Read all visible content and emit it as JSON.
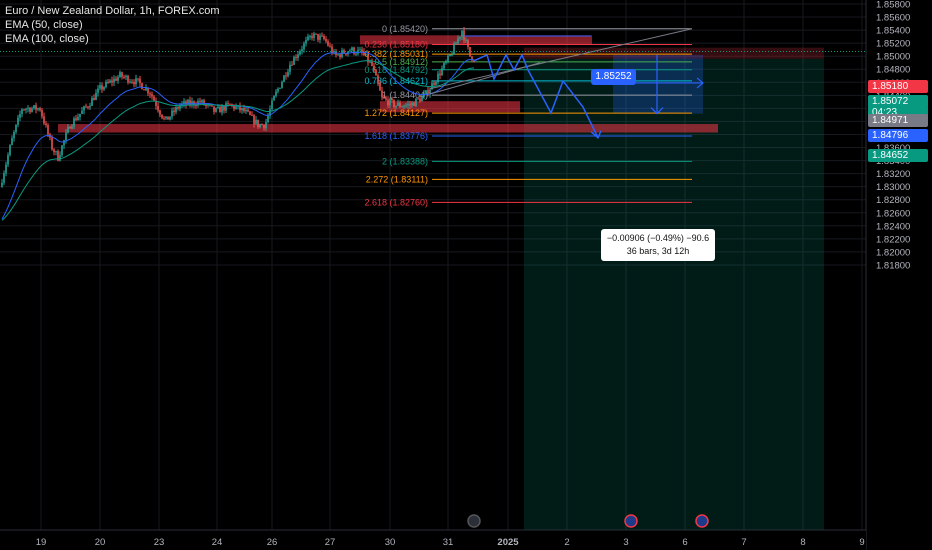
{
  "legend": {
    "symbol": "Euro / New Zealand Dollar, 1h, FOREX.com",
    "ema50": "EMA (50, close)",
    "ema100": "EMA (100, close)"
  },
  "price_axis": {
    "ticks": [
      "1.85800",
      "1.85600",
      "1.85400",
      "1.85200",
      "1.85000",
      "1.84800",
      "1.84600",
      "1.84400",
      "1.84200",
      "1.84000",
      "1.83800",
      "1.83600",
      "1.83400",
      "1.83200",
      "1.83000",
      "1.82800",
      "1.82600",
      "1.82400",
      "1.82200",
      "1.82000",
      "1.81800"
    ],
    "tags": [
      {
        "text": "1.85180",
        "color": "#f23645"
      },
      {
        "text": "1.85072",
        "color": "#089981"
      },
      {
        "text": "04:23",
        "color": "#089981"
      },
      {
        "text": "1.84971",
        "color": "#787b86"
      },
      {
        "text": "1.84796",
        "color": "#2962ff"
      },
      {
        "text": "1.84652",
        "color": "#089981"
      }
    ]
  },
  "time_axis": {
    "labels": [
      "19",
      "20",
      "23",
      "24",
      "26",
      "27",
      "30",
      "31",
      "2025",
      "2",
      "3",
      "6",
      "7",
      "8",
      "9"
    ]
  },
  "fib_levels": [
    {
      "label": "0 (1.85420)",
      "price": 1.8542,
      "color": "#9598a1"
    },
    {
      "label": "0.236 (1.85180)",
      "price": 1.8518,
      "color": "#f23645"
    },
    {
      "label": "0.382 (1.85031)",
      "price": 1.85031,
      "color": "#ff9800"
    },
    {
      "label": "0.5 (1.84912)",
      "price": 1.84912,
      "color": "#4caf50"
    },
    {
      "label": "0.618 (1.84792)",
      "price": 1.84792,
      "color": "#089981"
    },
    {
      "label": "0.786 (1.84621)",
      "price": 1.84621,
      "color": "#00bcd4"
    },
    {
      "label": "1 (1.84404)",
      "price": 1.84404,
      "color": "#9598a1"
    },
    {
      "label": "1.272 (1.84127)",
      "price": 1.84127,
      "color": "#ff9800"
    },
    {
      "label": "1.618 (1.83776)",
      "price": 1.83776,
      "color": "#2962ff"
    },
    {
      "label": "2 (1.83388)",
      "price": 1.83388,
      "color": "#089981"
    },
    {
      "label": "2.272 (1.83111)",
      "price": 1.83111,
      "color": "#ff9800"
    },
    {
      "label": "2.618 (1.82760)",
      "price": 1.8276,
      "color": "#f23645"
    }
  ],
  "price_label": "1.85252",
  "measure": {
    "line1": "−0.00906 (−0.49%) −90.6",
    "line2": "36 bars, 3d 12h"
  },
  "colors": {
    "bull": "#26a69a",
    "bear": "#ef5350",
    "ema50": "#2962ff",
    "ema100": "#089981"
  },
  "icons": [
    "flash-event-icon",
    "calendar-event-icon",
    "calendar-event-icon"
  ]
}
